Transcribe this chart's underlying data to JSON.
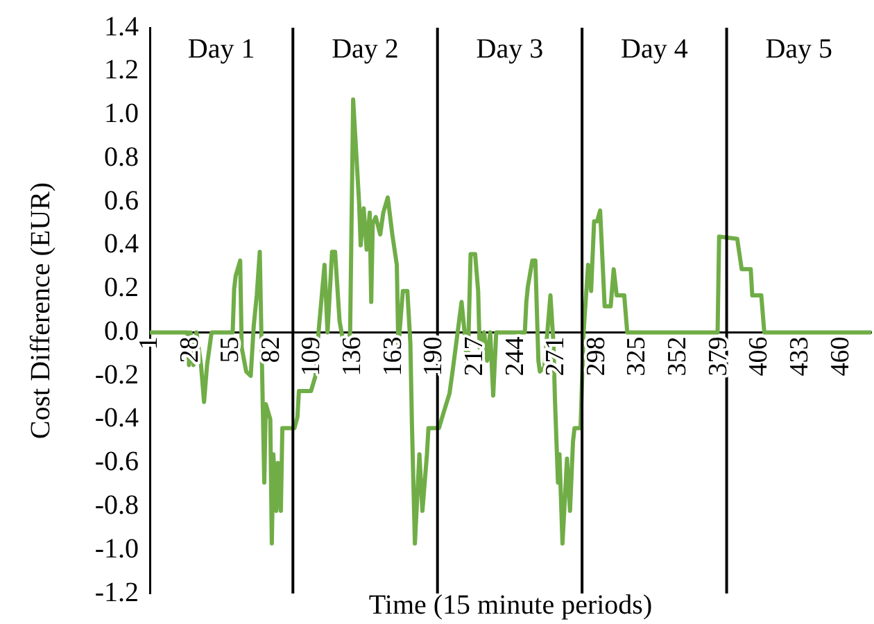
{
  "chart_data": {
    "type": "line",
    "xlabel": "Time (15 minute periods)",
    "ylabel": "Cost Difference (EUR)",
    "color": "#70ad47",
    "x": [
      1,
      26,
      27,
      28,
      30,
      32,
      35,
      37,
      39,
      42,
      56,
      57,
      58,
      61,
      62,
      65,
      68,
      70,
      72,
      74,
      77,
      78,
      81,
      82,
      83,
      85,
      86,
      88,
      89,
      97,
      99,
      100,
      108,
      111,
      113,
      117,
      119,
      122,
      124,
      127,
      131,
      134,
      136,
      140,
      141,
      143,
      145,
      147,
      148,
      149,
      151,
      154,
      156,
      159,
      162,
      165,
      166,
      169,
      172,
      174,
      175,
      177,
      180,
      182,
      185,
      186,
      193,
      196,
      200,
      202,
      208,
      210,
      212,
      214,
      217,
      219,
      220,
      223,
      225,
      227,
      229,
      231,
      250,
      251,
      252,
      255,
      257,
      259,
      260,
      263,
      267,
      269,
      270,
      272,
      273,
      275,
      278,
      280,
      282,
      283,
      287,
      289,
      292,
      294,
      296,
      298,
      300,
      303,
      307,
      309,
      311,
      316,
      318,
      378,
      379,
      391,
      394,
      400,
      401,
      407,
      409,
      480
    ],
    "values": [
      0,
      0,
      -0.15,
      0,
      -0.15,
      0,
      -0.15,
      -0.32,
      -0.15,
      0,
      0,
      0.2,
      0.26,
      0.33,
      -0.07,
      -0.18,
      -0.2,
      0.03,
      0.17,
      0.37,
      -0.69,
      -0.33,
      -0.4,
      -0.97,
      -0.56,
      -0.82,
      -0.6,
      -0.82,
      -0.44,
      -0.44,
      -0.39,
      -0.27,
      -0.27,
      -0.2,
      0,
      0.31,
      0,
      0.37,
      0.37,
      0.05,
      -0.1,
      0,
      1.07,
      0.59,
      0.4,
      0.57,
      0.38,
      0.55,
      0.14,
      0.5,
      0.53,
      0.45,
      0.55,
      0.62,
      0.45,
      0.31,
      -0.07,
      0.19,
      0.19,
      -0.05,
      -0.41,
      -0.97,
      -0.56,
      -0.82,
      -0.56,
      -0.44,
      -0.44,
      -0.37,
      -0.28,
      -0.18,
      0.14,
      0,
      -0.18,
      0.36,
      0.36,
      0.19,
      -0.07,
      0,
      -0.13,
      0,
      -0.29,
      0,
      0,
      0.14,
      0.21,
      0.33,
      0.33,
      -0.13,
      -0.18,
      -0.16,
      0.17,
      -0.05,
      -0.31,
      -0.69,
      -0.56,
      -0.97,
      -0.58,
      -0.82,
      -0.5,
      -0.44,
      -0.44,
      0,
      0.31,
      0.19,
      0.51,
      0.51,
      0.56,
      0.12,
      0.12,
      0.29,
      0.17,
      0.17,
      0,
      0,
      0.44,
      0.43,
      0.29,
      0.29,
      0.17,
      0.17,
      0,
      0
    ],
    "xlim": [
      1,
      480
    ],
    "xticks": [
      1,
      28,
      55,
      82,
      109,
      136,
      163,
      190,
      217,
      244,
      271,
      298,
      325,
      352,
      379,
      406,
      433,
      460
    ],
    "ylim": [
      -1.2,
      1.4
    ],
    "yticks": [
      {
        "value": -1.2,
        "label": "-1.2"
      },
      {
        "value": -1,
        "label": "-1.0"
      },
      -0.8,
      -0.6,
      -0.4,
      -0.2,
      {
        "value": 0,
        "label": "0.0"
      },
      0.2,
      0.4,
      0.6,
      0.8,
      {
        "value": 1,
        "label": "1.0"
      },
      1.2,
      1.4
    ],
    "ref_lines": [
      {
        "axis": "x",
        "value": 96,
        "color": "#000000"
      },
      {
        "axis": "x",
        "value": 192,
        "color": "#000000"
      },
      {
        "axis": "x",
        "value": 288,
        "color": "#000000"
      },
      {
        "axis": "x",
        "value": 384,
        "color": "#000000"
      }
    ],
    "annotations": [
      "Day 1",
      "Day 2",
      "Day 3",
      "Day 4",
      "Day 5"
    ]
  }
}
